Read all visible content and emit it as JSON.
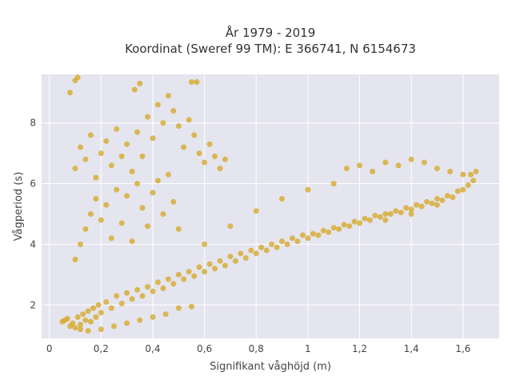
{
  "chart_data": {
    "type": "scatter",
    "title_line1": "År 1979 - 2019",
    "title_line2": "Koordinat (Sweref 99 TM): E 366741, N 6154673",
    "xlabel": "Signifikant våghöjd (m)",
    "ylabel": "Vågperiod (s)",
    "xlim": [
      -0.03,
      1.74
    ],
    "ylim": [
      0.9,
      9.6
    ],
    "x_ticks": [
      0,
      0.2,
      0.4,
      0.6,
      0.8,
      1.0,
      1.2,
      1.4,
      1.6
    ],
    "x_tick_labels": [
      "0",
      "0,2",
      "0,4",
      "0,6",
      "0,8",
      "1",
      "1,2",
      "1,4",
      "1,6"
    ],
    "y_ticks": [
      2,
      4,
      6,
      8
    ],
    "y_tick_labels": [
      "2",
      "4",
      "6",
      "8"
    ],
    "grid": true,
    "colors": {
      "marker": "#D4A520",
      "plot_background": "#E5E5EF",
      "grid": "#ffffff"
    },
    "series": [
      {
        "marker_opacity": 0.75,
        "points": [
          [
            0.05,
            1.45
          ],
          [
            0.06,
            1.5
          ],
          [
            0.07,
            1.55
          ],
          [
            0.08,
            1.3
          ],
          [
            0.09,
            1.4
          ],
          [
            0.1,
            1.25
          ],
          [
            0.11,
            1.6
          ],
          [
            0.12,
            1.35
          ],
          [
            0.13,
            1.7
          ],
          [
            0.14,
            1.5
          ],
          [
            0.15,
            1.8
          ],
          [
            0.16,
            1.45
          ],
          [
            0.17,
            1.9
          ],
          [
            0.18,
            1.6
          ],
          [
            0.19,
            2.0
          ],
          [
            0.2,
            1.75
          ],
          [
            0.22,
            2.1
          ],
          [
            0.24,
            1.9
          ],
          [
            0.26,
            2.3
          ],
          [
            0.28,
            2.05
          ],
          [
            0.3,
            2.4
          ],
          [
            0.32,
            2.2
          ],
          [
            0.34,
            2.5
          ],
          [
            0.36,
            2.3
          ],
          [
            0.38,
            2.6
          ],
          [
            0.4,
            2.45
          ],
          [
            0.42,
            2.75
          ],
          [
            0.44,
            2.55
          ],
          [
            0.46,
            2.85
          ],
          [
            0.48,
            2.7
          ],
          [
            0.5,
            3.0
          ],
          [
            0.52,
            2.85
          ],
          [
            0.54,
            3.1
          ],
          [
            0.56,
            2.95
          ],
          [
            0.58,
            3.25
          ],
          [
            0.6,
            3.1
          ],
          [
            0.62,
            3.35
          ],
          [
            0.64,
            3.2
          ],
          [
            0.66,
            3.45
          ],
          [
            0.68,
            3.3
          ],
          [
            0.7,
            3.6
          ],
          [
            0.72,
            3.45
          ],
          [
            0.74,
            3.7
          ],
          [
            0.76,
            3.55
          ],
          [
            0.78,
            3.8
          ],
          [
            0.8,
            3.7
          ],
          [
            0.82,
            3.9
          ],
          [
            0.84,
            3.8
          ],
          [
            0.86,
            4.0
          ],
          [
            0.88,
            3.9
          ],
          [
            0.9,
            4.1
          ],
          [
            0.92,
            4.0
          ],
          [
            0.94,
            4.2
          ],
          [
            0.96,
            4.1
          ],
          [
            0.98,
            4.3
          ],
          [
            1.0,
            4.2
          ],
          [
            1.02,
            4.35
          ],
          [
            1.04,
            4.3
          ],
          [
            1.06,
            4.45
          ],
          [
            1.08,
            4.4
          ],
          [
            1.1,
            4.55
          ],
          [
            1.12,
            4.5
          ],
          [
            1.14,
            4.65
          ],
          [
            1.16,
            4.6
          ],
          [
            1.18,
            4.75
          ],
          [
            1.2,
            4.7
          ],
          [
            1.22,
            4.85
          ],
          [
            1.24,
            4.8
          ],
          [
            1.26,
            4.95
          ],
          [
            1.28,
            4.9
          ],
          [
            1.3,
            5.0
          ],
          [
            1.32,
            5.0
          ],
          [
            1.34,
            5.1
          ],
          [
            1.36,
            5.05
          ],
          [
            1.38,
            5.2
          ],
          [
            1.4,
            5.15
          ],
          [
            1.42,
            5.3
          ],
          [
            1.44,
            5.25
          ],
          [
            1.46,
            5.4
          ],
          [
            1.48,
            5.35
          ],
          [
            1.5,
            5.5
          ],
          [
            1.52,
            5.45
          ],
          [
            1.54,
            5.6
          ],
          [
            1.56,
            5.55
          ],
          [
            1.58,
            5.75
          ],
          [
            1.6,
            5.8
          ],
          [
            1.62,
            5.95
          ],
          [
            1.64,
            6.1
          ],
          [
            1.65,
            6.4
          ],
          [
            1.63,
            6.3
          ],
          [
            0.1,
            6.5
          ],
          [
            0.12,
            7.2
          ],
          [
            0.14,
            6.8
          ],
          [
            0.16,
            7.6
          ],
          [
            0.18,
            6.2
          ],
          [
            0.2,
            7.0
          ],
          [
            0.22,
            7.4
          ],
          [
            0.24,
            6.6
          ],
          [
            0.26,
            7.8
          ],
          [
            0.28,
            6.9
          ],
          [
            0.3,
            7.3
          ],
          [
            0.32,
            6.4
          ],
          [
            0.34,
            7.7
          ],
          [
            0.36,
            6.9
          ],
          [
            0.38,
            8.2
          ],
          [
            0.4,
            7.5
          ],
          [
            0.42,
            8.6
          ],
          [
            0.44,
            8.0
          ],
          [
            0.46,
            8.9
          ],
          [
            0.48,
            8.4
          ],
          [
            0.5,
            7.9
          ],
          [
            0.52,
            7.2
          ],
          [
            0.54,
            8.1
          ],
          [
            0.56,
            7.6
          ],
          [
            0.58,
            7.0
          ],
          [
            0.6,
            6.7
          ],
          [
            0.62,
            7.3
          ],
          [
            0.64,
            6.9
          ],
          [
            0.66,
            6.5
          ],
          [
            0.68,
            6.8
          ],
          [
            0.1,
            9.4
          ],
          [
            0.11,
            9.5
          ],
          [
            0.08,
            9.0
          ],
          [
            0.33,
            9.1
          ],
          [
            0.35,
            9.3
          ],
          [
            0.55,
            9.35
          ],
          [
            0.57,
            9.35
          ],
          [
            1.15,
            6.5
          ],
          [
            1.2,
            6.6
          ],
          [
            1.25,
            6.4
          ],
          [
            1.3,
            6.7
          ],
          [
            1.35,
            6.6
          ],
          [
            1.4,
            6.8
          ],
          [
            1.45,
            6.7
          ],
          [
            1.5,
            6.5
          ],
          [
            1.55,
            6.4
          ],
          [
            1.6,
            6.3
          ],
          [
            1.3,
            4.8
          ],
          [
            1.4,
            5.0
          ],
          [
            1.5,
            5.3
          ],
          [
            0.6,
            4.0
          ],
          [
            0.7,
            4.6
          ],
          [
            0.8,
            5.1
          ],
          [
            0.9,
            5.5
          ],
          [
            1.0,
            5.8
          ],
          [
            1.1,
            6.0
          ],
          [
            0.5,
            4.5
          ],
          [
            0.3,
            1.4
          ],
          [
            0.35,
            1.5
          ],
          [
            0.4,
            1.6
          ],
          [
            0.45,
            1.7
          ],
          [
            0.5,
            1.9
          ],
          [
            0.55,
            1.95
          ],
          [
            0.25,
            1.3
          ],
          [
            0.2,
            1.2
          ],
          [
            0.15,
            1.15
          ],
          [
            0.12,
            1.2
          ],
          [
            0.1,
            3.5
          ],
          [
            0.12,
            4.0
          ],
          [
            0.14,
            4.5
          ],
          [
            0.16,
            5.0
          ],
          [
            0.18,
            5.5
          ],
          [
            0.2,
            4.8
          ],
          [
            0.22,
            5.3
          ],
          [
            0.24,
            4.2
          ],
          [
            0.26,
            5.8
          ],
          [
            0.28,
            4.7
          ],
          [
            0.3,
            5.6
          ],
          [
            0.32,
            4.1
          ],
          [
            0.34,
            6.0
          ],
          [
            0.36,
            5.2
          ],
          [
            0.38,
            4.6
          ],
          [
            0.4,
            5.7
          ],
          [
            0.42,
            6.1
          ],
          [
            0.44,
            5.0
          ],
          [
            0.46,
            6.3
          ],
          [
            0.48,
            5.4
          ]
        ]
      }
    ]
  }
}
